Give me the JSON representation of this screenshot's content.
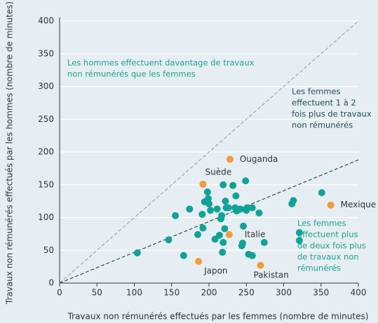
{
  "chart_data": {
    "type": "scatter",
    "x_label": "Travaux non rémunérés effectués par les femmes (nombre de minutes)",
    "y_label": "Travaux non rémunérés effectués par les hommes (nombre de minutes)",
    "xlim": [
      0,
      400
    ],
    "ylim": [
      0,
      400
    ],
    "xticks": [
      0,
      50,
      100,
      150,
      200,
      250,
      300,
      350,
      400
    ],
    "yticks": [
      0,
      50,
      100,
      150,
      200,
      250,
      300,
      350,
      400
    ],
    "grid": true,
    "reference_lines": [
      {
        "slope": 1,
        "color": "#a0a4a8"
      },
      {
        "slope": 0.47,
        "color": "#1d4f57"
      }
    ],
    "annotations": [
      {
        "lines": [
          "Les hommes effectuent davantage de travaux",
          "non rémunérés que les femmes"
        ],
        "color": "#1aa394"
      },
      {
        "lines": [
          "Les femmes",
          "effectuent 1 à 2",
          "fois plus de travaux",
          "non rémunérés"
        ],
        "color": "#1d4f57"
      },
      {
        "lines": [
          "Les femmes",
          "effectuent plus",
          "de deux fois plus",
          "de travaux non",
          "rémunérés"
        ],
        "color": "#1aa394"
      }
    ],
    "series": [
      {
        "color": "#0fa397",
        "x": [
          104,
          146,
          155,
          166,
          174,
          185,
          191,
          192,
          194,
          198,
          199,
          200,
          202,
          208,
          211,
          214,
          216,
          217,
          218,
          219,
          219,
          221,
          222,
          223,
          226,
          232,
          235,
          236,
          237,
          242,
          244,
          245,
          246,
          249,
          250,
          251,
          253,
          258,
          258,
          267,
          274,
          311,
          313,
          321,
          321,
          351
        ],
        "values": [
          46,
          66,
          103,
          42,
          113,
          74,
          105,
          84,
          124,
          139,
          129,
          121,
          111,
          67,
          113,
          73,
          98,
          103,
          47,
          150,
          62,
          83,
          125,
          115,
          115,
          149,
          115,
          133,
          110,
          113,
          57,
          61,
          87,
          156,
          111,
          115,
          44,
          115,
          42,
          107,
          62,
          121,
          126,
          77,
          65,
          138
        ]
      },
      {
        "color": "#f39a3b",
        "x": [
          228,
          192,
          227,
          186,
          269,
          363
        ],
        "values": [
          189,
          151,
          74,
          33,
          27,
          119
        ],
        "labels": [
          "Ouganda",
          "Suède",
          "Italie",
          "Japon",
          "Pakistan",
          "Mexique"
        ]
      }
    ]
  }
}
